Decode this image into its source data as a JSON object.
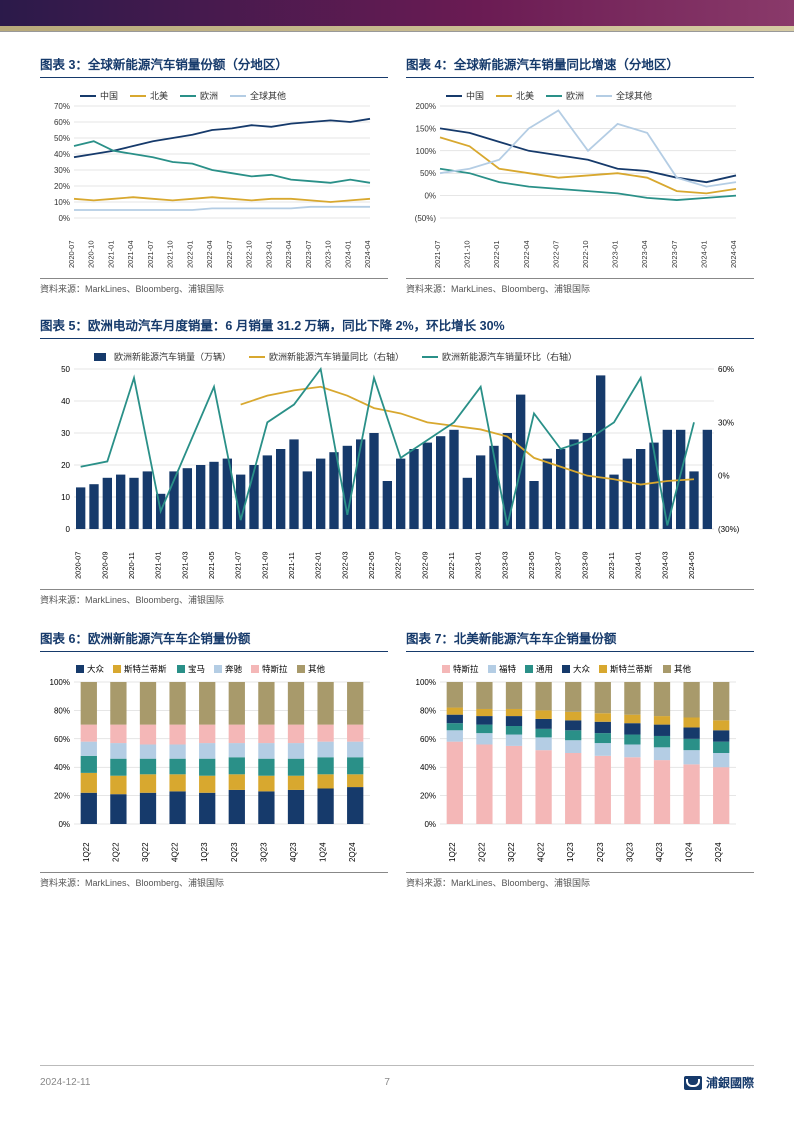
{
  "colors": {
    "navy": "#163a6b",
    "yellow": "#d8a82f",
    "teal": "#2a9088",
    "lightblue": "#b4cde4",
    "pink": "#f4b7b7",
    "olive": "#a89a6b",
    "grid": "#cccccc",
    "axis": "#333333",
    "bg": "#ffffff"
  },
  "chart3": {
    "title": "图表 3：全球新能源汽车销量份额（分地区）",
    "series_labels": [
      "中国",
      "北美",
      "欧洲",
      "全球其他"
    ],
    "series_colors": [
      "#163a6b",
      "#d8a82f",
      "#2a9088",
      "#b4cde4"
    ],
    "x_labels": [
      "2020-07",
      "2020-10",
      "2021-01",
      "2021-04",
      "2021-07",
      "2021-10",
      "2022-01",
      "2022-04",
      "2022-07",
      "2022-10",
      "2023-01",
      "2023-04",
      "2023-07",
      "2023-10",
      "2024-01",
      "2024-04"
    ],
    "ylim": [
      0,
      70
    ],
    "ytick": 10,
    "yfmt": "%",
    "data": {
      "china": [
        38,
        40,
        42,
        45,
        48,
        50,
        52,
        55,
        56,
        58,
        57,
        59,
        60,
        61,
        60,
        62
      ],
      "na": [
        12,
        11,
        12,
        13,
        12,
        11,
        12,
        13,
        12,
        11,
        12,
        12,
        11,
        10,
        11,
        12
      ],
      "europe": [
        45,
        48,
        42,
        40,
        38,
        35,
        34,
        30,
        28,
        26,
        27,
        24,
        23,
        22,
        24,
        22
      ],
      "other": [
        5,
        5,
        5,
        5,
        5,
        5,
        5,
        6,
        6,
        6,
        6,
        6,
        7,
        7,
        7,
        7
      ]
    },
    "source": "資料来源：MarkLines、Bloomberg、浦银国际"
  },
  "chart4": {
    "title": "图表 4：全球新能源汽车销量同比增速（分地区）",
    "series_labels": [
      "中国",
      "北美",
      "欧洲",
      "全球其他"
    ],
    "series_colors": [
      "#163a6b",
      "#d8a82f",
      "#2a9088",
      "#b4cde4"
    ],
    "x_labels": [
      "2021-07",
      "2021-10",
      "2022-01",
      "2022-04",
      "2022-07",
      "2022-10",
      "2023-01",
      "2023-04",
      "2023-07",
      "2024-01",
      "2024-04"
    ],
    "ylim": [
      -50,
      200
    ],
    "ytick": 50,
    "yfmt": "%paren",
    "data": {
      "china": [
        150,
        140,
        120,
        100,
        90,
        80,
        60,
        55,
        40,
        30,
        45
      ],
      "na": [
        130,
        110,
        60,
        50,
        40,
        45,
        50,
        40,
        10,
        5,
        15
      ],
      "europe": [
        60,
        50,
        30,
        20,
        15,
        10,
        5,
        -5,
        -10,
        -5,
        0
      ],
      "other": [
        50,
        60,
        80,
        150,
        190,
        100,
        160,
        140,
        40,
        20,
        30
      ]
    },
    "source": "資料来源：MarkLines、Bloomberg、浦银国际"
  },
  "chart5": {
    "title": "图表 5：欧洲电动汽车月度销量：6 月销量 31.2 万辆，同比下降 2%，环比增长 30%",
    "legend": [
      "欧洲新能源汽车销量（万辆）",
      "欧洲新能源汽车销量同比（右轴）",
      "欧洲新能源汽车销量环比（右轴）"
    ],
    "legend_colors": [
      "#163a6b",
      "#d8a82f",
      "#2a9088"
    ],
    "x_labels": [
      "2020-07",
      "2020-09",
      "2020-11",
      "2021-01",
      "2021-03",
      "2021-05",
      "2021-07",
      "2021-09",
      "2021-11",
      "2022-01",
      "2022-03",
      "2022-05",
      "2022-07",
      "2022-09",
      "2022-11",
      "2023-01",
      "2023-03",
      "2023-05",
      "2023-07",
      "2023-09",
      "2023-11",
      "2024-01",
      "2024-03",
      "2024-05"
    ],
    "left": {
      "lim": [
        0,
        50
      ],
      "tick": 10
    },
    "right": {
      "lim": [
        -30,
        60
      ],
      "tick": 30,
      "fmt": "%paren"
    },
    "bars": [
      13,
      14,
      16,
      17,
      16,
      18,
      11,
      18,
      19,
      20,
      21,
      22,
      17,
      20,
      23,
      25,
      28,
      18,
      22,
      24,
      26,
      28,
      30,
      15,
      22,
      25,
      27,
      29,
      31,
      16,
      23,
      26,
      30,
      42,
      15,
      22,
      25,
      28,
      30,
      48,
      17,
      22,
      25,
      27,
      31,
      31,
      18,
      31
    ],
    "yoy": [
      null,
      null,
      null,
      null,
      null,
      null,
      40,
      45,
      48,
      50,
      45,
      38,
      35,
      30,
      28,
      26,
      22,
      10,
      5,
      0,
      -2,
      -5,
      -3,
      -2
    ],
    "mom": [
      5,
      8,
      55,
      -20,
      15,
      50,
      -25,
      30,
      40,
      60,
      -22,
      55,
      10,
      20,
      30,
      50,
      -28,
      35,
      15,
      20,
      30,
      55,
      -28,
      30
    ],
    "source": "資料来源：MarkLines、Bloomberg、浦银国际"
  },
  "chart6": {
    "title": "图表 6：欧洲新能源汽车车企销量份额",
    "legend": [
      "大众",
      "斯特兰蒂斯",
      "宝马",
      "奔驰",
      "特斯拉",
      "其他"
    ],
    "colors": [
      "#163a6b",
      "#d8a82f",
      "#2a9088",
      "#b4cde4",
      "#f4b7b7",
      "#a89a6b"
    ],
    "x_labels": [
      "1Q22",
      "2Q22",
      "3Q22",
      "4Q22",
      "1Q23",
      "2Q23",
      "3Q23",
      "4Q23",
      "1Q24",
      "2Q24"
    ],
    "ylim": [
      0,
      100
    ],
    "ytick": 20,
    "yfmt": "%",
    "stacks": [
      [
        22,
        14,
        12,
        10,
        12,
        30
      ],
      [
        21,
        13,
        12,
        11,
        13,
        30
      ],
      [
        22,
        13,
        11,
        10,
        14,
        30
      ],
      [
        23,
        12,
        11,
        10,
        14,
        30
      ],
      [
        22,
        12,
        12,
        11,
        13,
        30
      ],
      [
        24,
        11,
        12,
        10,
        13,
        30
      ],
      [
        23,
        11,
        12,
        11,
        13,
        30
      ],
      [
        24,
        10,
        12,
        11,
        13,
        30
      ],
      [
        25,
        10,
        12,
        11,
        12,
        30
      ],
      [
        26,
        9,
        12,
        11,
        12,
        30
      ]
    ],
    "source": "資料来源：MarkLines、Bloomberg、浦银国际"
  },
  "chart7": {
    "title": "图表 7：北美新能源汽车车企销量份额",
    "legend": [
      "特斯拉",
      "福特",
      "通用",
      "大众",
      "斯特兰蒂斯",
      "其他"
    ],
    "colors": [
      "#f4b7b7",
      "#b4cde4",
      "#2a9088",
      "#163a6b",
      "#d8a82f",
      "#a89a6b"
    ],
    "x_labels": [
      "1Q22",
      "2Q22",
      "3Q22",
      "4Q22",
      "1Q23",
      "2Q23",
      "3Q23",
      "4Q23",
      "1Q24",
      "2Q24"
    ],
    "ylim": [
      0,
      100
    ],
    "ytick": 20,
    "yfmt": "%",
    "stacks": [
      [
        58,
        8,
        5,
        6,
        5,
        18
      ],
      [
        56,
        8,
        6,
        6,
        5,
        19
      ],
      [
        55,
        8,
        6,
        7,
        5,
        19
      ],
      [
        52,
        9,
        6,
        7,
        6,
        20
      ],
      [
        50,
        9,
        7,
        7,
        6,
        21
      ],
      [
        48,
        9,
        7,
        8,
        6,
        22
      ],
      [
        47,
        9,
        7,
        8,
        6,
        23
      ],
      [
        45,
        9,
        8,
        8,
        6,
        24
      ],
      [
        42,
        10,
        8,
        8,
        7,
        25
      ],
      [
        40,
        10,
        8,
        8,
        7,
        27
      ]
    ],
    "source": "資料来源：MarkLines、Bloomberg、浦银国际"
  },
  "footer": {
    "date": "2024-12-11",
    "page": "7",
    "brand": "浦銀國際"
  }
}
